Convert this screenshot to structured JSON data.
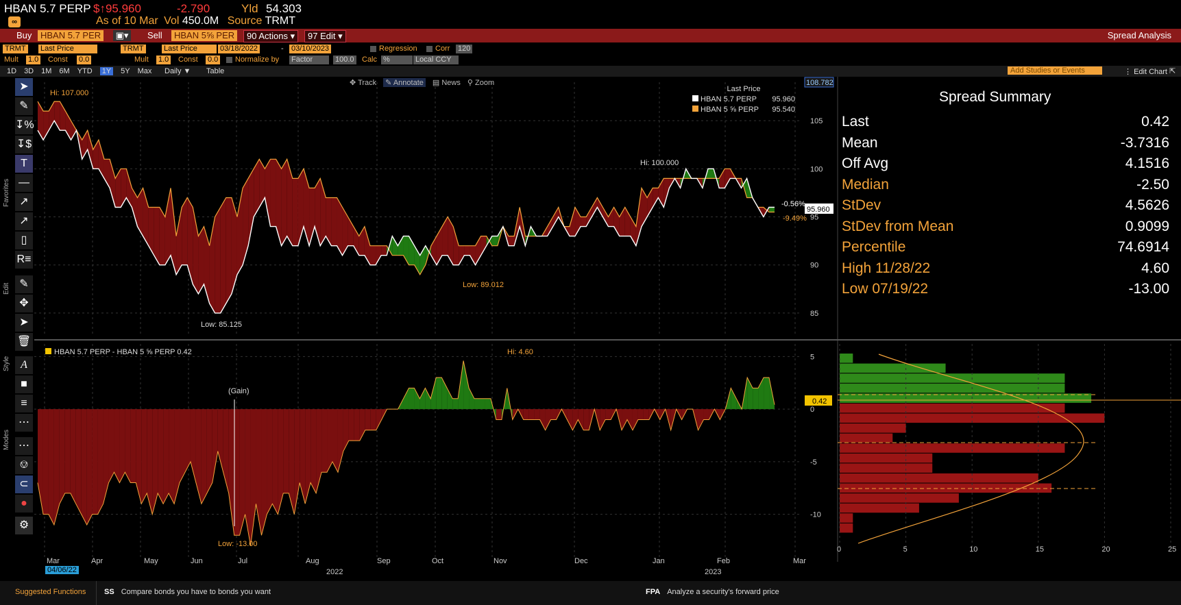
{
  "header": {
    "ticker": "HBAN 5.7 PERP",
    "price": "$↑95.960",
    "change": "-2.790",
    "yld_label": "Yld",
    "yld_value": "54.303",
    "asof_label": "As of",
    "asof_date": "10 Mar",
    "vol_label": "Vol",
    "vol_value": "450.0M",
    "source_label": "Source",
    "source_value": "TRMT"
  },
  "redbar": {
    "buy": "Buy",
    "buy_security": "HBAN 5.7 PER",
    "sell": "Sell",
    "sell_security": "HBAN 5⅝ PER",
    "actions": "90 Actions ▾",
    "edit": "97 Edit ▾",
    "title": "Spread Analysis"
  },
  "controls": {
    "src1": "TRMT",
    "field1": "Last Price",
    "src2": "TRMT",
    "field2": "Last Price",
    "start_date": "03/18/2022",
    "end_date": "03/10/2023",
    "regression": "Regression",
    "corr": "Corr",
    "corr_value": "120",
    "mult1_label": "Mult",
    "mult1": "1.0",
    "const1_label": "Const",
    "const1": "0.0",
    "mult2_label": "Mult",
    "mult2": "1.0",
    "const2_label": "Const",
    "const2": "0.0",
    "normalize_label": "Normalize by",
    "normalize": "Factor",
    "factor": "100.0",
    "calc_label": "Calc",
    "calc": "%",
    "ccy": "Local CCY"
  },
  "periods": [
    "1D",
    "3D",
    "1M",
    "6M",
    "YTD",
    "1Y",
    "5Y",
    "Max"
  ],
  "selected_period": "1Y",
  "freq": "Daily ▼",
  "table_btn": "Table",
  "add_studies": "Add Studies or Events",
  "edit_chart": "Edit Chart",
  "chart_tools": {
    "track": "Track",
    "annotate": "Annotate",
    "news": "News",
    "zoom": "Zoom"
  },
  "toolbar_labels": {
    "favorites": "Favorites",
    "edit": "Edit",
    "style": "Style",
    "modes": "Modes"
  },
  "legend": {
    "title": "Last Price",
    "s1_name": "HBAN 5.7 PERP",
    "s1_value": "95.960",
    "s2_name": "HBAN 5 ⅝ PERP",
    "s2_value": "95.540"
  },
  "spread_legend": "HBAN 5.7 PERP - HBAN 5 ⅝ PERP 0.42",
  "colors": {
    "s1": "#ffffff",
    "s2": "#f3a33a",
    "pos": "#1f7a12",
    "neg": "#7a0f0f",
    "accent": "#f3a33a"
  },
  "chart_data": [
    {
      "type": "line",
      "x_axis_labels": [
        "Mar",
        "Apr",
        "May",
        "Jun",
        "Jul",
        "Aug",
        "Sep",
        "Oct",
        "Nov",
        "Dec",
        "Jan",
        "Feb",
        "Mar"
      ],
      "year_labels": [
        "2022",
        "2023"
      ],
      "date_highlight": "04/06/22",
      "ylim": [
        83,
        109
      ],
      "y_ticks": [
        "85",
        "90",
        "95",
        "100",
        "105"
      ],
      "axis_top_label": "108.782",
      "series": [
        {
          "name": "HBAN 5.7 PERP",
          "values": [
            104,
            103,
            104,
            105,
            104,
            104,
            103,
            104,
            101,
            102,
            100,
            100,
            99,
            98,
            96,
            96,
            97,
            96,
            94,
            93,
            92,
            91,
            90,
            90,
            91,
            89,
            90,
            90,
            88,
            87,
            88,
            86,
            85,
            85,
            86,
            87,
            89,
            90,
            92,
            95,
            96,
            97,
            94,
            94,
            92,
            93,
            92,
            92,
            94,
            92,
            94,
            92,
            93,
            92,
            92,
            91,
            92,
            92,
            91,
            91,
            90,
            90,
            91,
            91,
            93,
            92,
            93,
            93,
            92,
            91,
            92,
            91,
            90,
            91,
            91,
            90,
            90,
            91,
            91,
            90,
            91,
            92,
            93,
            93,
            94,
            92,
            92,
            94,
            92,
            94,
            93,
            93,
            93,
            94,
            95,
            94,
            93,
            93,
            94,
            94,
            95,
            96,
            95,
            94,
            94,
            93,
            93,
            93,
            92,
            94,
            95,
            96,
            97,
            96,
            98,
            99,
            98,
            100,
            99,
            99,
            98,
            100,
            100,
            98,
            98,
            99,
            99,
            98,
            99,
            97,
            96,
            95,
            96,
            96
          ]
        },
        {
          "name": "HBAN 5 ⅝ PERP",
          "values": [
            107,
            106,
            106,
            107,
            107,
            106,
            105,
            104,
            103,
            104,
            102,
            103,
            101,
            101,
            99,
            100,
            100,
            98,
            97,
            98,
            96,
            96,
            96,
            95,
            98,
            93,
            96,
            97,
            96,
            93,
            94,
            92,
            95,
            96,
            97,
            97,
            95,
            98,
            99,
            100,
            101,
            100,
            101,
            101,
            100,
            101,
            99,
            99,
            100,
            98,
            98,
            99,
            97,
            97,
            97,
            96,
            95,
            94,
            93,
            94,
            92,
            92,
            92,
            92,
            91,
            91,
            91,
            90,
            90,
            89,
            90,
            92,
            93,
            94,
            95,
            94,
            92,
            92,
            92,
            92,
            93,
            93,
            92,
            92,
            94,
            93,
            93,
            96,
            93,
            93,
            93,
            93,
            94,
            95,
            96,
            94,
            94,
            96,
            95,
            95,
            96,
            97,
            96,
            95,
            96,
            95,
            96,
            95,
            94,
            98,
            97,
            98,
            98,
            99,
            99,
            99,
            99,
            99,
            99,
            99,
            99,
            99,
            99,
            99,
            100,
            100,
            99,
            99,
            97,
            97,
            96,
            96,
            95.5,
            95.5
          ]
        }
      ],
      "annotations": [
        "Hi: 107.000",
        "Low: 85.125",
        "Low: 89.012",
        "Hi: 100.000",
        "-0.56%",
        "-9.49%"
      ],
      "last_price_tag": "95.960"
    },
    {
      "type": "area",
      "name": "HBAN 5.7 PERP - HBAN 5 ⅝ PERP",
      "ylim": [
        -14,
        6
      ],
      "y_ticks": [
        "5",
        "0",
        "-5",
        "-10"
      ],
      "values": [
        -7,
        -10,
        -10,
        -11,
        -9,
        -8,
        -8,
        -9,
        -10,
        -11,
        -10,
        -10,
        -9,
        -7,
        -6,
        -7,
        -6,
        -7,
        -7,
        -9,
        -8,
        -10,
        -8,
        -9,
        -8,
        -9,
        -7,
        -6,
        -5,
        -7,
        -9,
        -8,
        -7,
        -4,
        -6,
        -8,
        -12,
        -12,
        -10,
        -13,
        -9,
        -12,
        -10,
        -9,
        -10,
        -8,
        -8,
        -10,
        -7,
        -9,
        -7,
        -8,
        -6,
        -6,
        -5,
        -6,
        -4,
        -3,
        -3,
        -3,
        -2,
        -2,
        -2,
        -1,
        0,
        0,
        0,
        1,
        2,
        2,
        1,
        2,
        1,
        3,
        3,
        2,
        1,
        1,
        4.6,
        2,
        1,
        1,
        1,
        1,
        -1,
        -1,
        2,
        -1,
        0,
        -1,
        -1,
        -1,
        -1,
        -2,
        -1,
        -1,
        0,
        -1,
        -2,
        -1,
        -2,
        -2,
        0,
        -2,
        -1,
        -1,
        0,
        -2,
        -1,
        -2,
        -1,
        -1,
        -1,
        0,
        -1,
        0,
        -2,
        0,
        -1,
        0,
        0,
        -2,
        -1,
        -1,
        0,
        -1,
        0,
        2,
        1,
        0,
        3,
        2,
        2,
        3,
        3,
        0.42
      ],
      "annotations": [
        "Hi: 4.60",
        "Low: -13.00",
        "(Gain)"
      ],
      "last_tag": "0.42"
    },
    {
      "type": "bar",
      "orientation": "horizontal",
      "categories": [
        "4.5",
        "3.5",
        "2.5",
        "1.5",
        "0.5",
        "-0.5",
        "-1.5",
        "-2.5",
        "-3.5",
        "-4.5",
        "-5.5",
        "-6.5",
        "-7.5",
        "-8.5",
        "-9.5",
        "-10.5",
        "-11.5",
        "-12.5",
        "-13.5"
      ],
      "values": [
        1,
        8,
        17,
        17,
        19,
        17,
        20,
        5,
        4,
        17,
        7,
        7,
        15,
        16,
        9,
        6,
        1,
        1,
        0
      ],
      "xlim": [
        0,
        25
      ],
      "x_ticks": [
        "0",
        "5",
        "10",
        "15",
        "20",
        "25"
      ]
    }
  ],
  "summary": {
    "title": "Spread Summary",
    "rows": [
      {
        "k": "Last",
        "v": "0.42",
        "c": "w"
      },
      {
        "k": "Mean",
        "v": "-3.7316",
        "c": "w"
      },
      {
        "k": "Off Avg",
        "v": "4.1516",
        "c": "w"
      },
      {
        "k": "Median",
        "v": "-2.50",
        "c": "o"
      },
      {
        "k": "StDev",
        "v": "4.5626",
        "c": "o"
      },
      {
        "k": "StDev from Mean",
        "v": "0.9099",
        "c": "o"
      },
      {
        "k": "Percentile",
        "v": "74.6914",
        "c": "o"
      },
      {
        "k": "High 11/28/22",
        "v": "4.60",
        "c": "o"
      },
      {
        "k": "Low 07/19/22",
        "v": "-13.00",
        "c": "o"
      }
    ]
  },
  "footer": {
    "suggested": "Suggested Functions",
    "f1_code": "SS",
    "f1_text": "Compare bonds you have to bonds you want",
    "f2_code": "FPA",
    "f2_text": "Analyze a security's forward price"
  }
}
